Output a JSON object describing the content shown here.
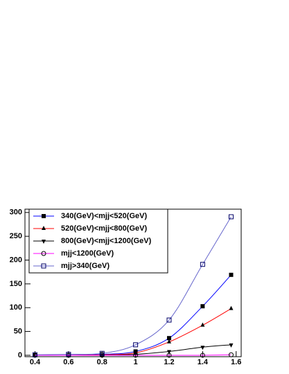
{
  "chart_data": {
    "type": "line",
    "x": [
      0.4,
      0.6,
      0.8,
      1.0,
      1.2,
      1.4,
      1.57
    ],
    "series": [
      {
        "name": "340(GeV)<mjj<520(GeV)",
        "color": "#0000ff",
        "marker_color": "#000000",
        "marker": "square",
        "values": [
          0,
          0,
          2,
          8,
          36,
          103,
          169
        ]
      },
      {
        "name": "520(GeV)<mjj<800(GeV)",
        "color": "#ff0000",
        "marker_color": "#000000",
        "marker": "triangle",
        "values": [
          0,
          0,
          1,
          5,
          28,
          63,
          98
        ]
      },
      {
        "name": "800(GeV)<mjj<1200(GeV)",
        "color": "#000000",
        "marker_color": "#000000",
        "marker": "triangle-down",
        "values": [
          0,
          0,
          0,
          2,
          8,
          17,
          22
        ]
      },
      {
        "name": "mjj<1200(GeV)",
        "color": "#ff00ff",
        "marker_color": "#000000",
        "marker": "circle-open",
        "values": [
          0,
          0,
          0,
          0,
          0,
          0,
          1
        ]
      },
      {
        "name": "mjj>340(GeV)",
        "color": "#6666cc",
        "marker_color": "#000066",
        "marker": "square-open",
        "values": [
          1,
          2,
          4,
          22,
          74,
          191,
          291
        ]
      }
    ],
    "xlim": [
      0.34,
      1.63
    ],
    "xticks": [
      0.4,
      0.6,
      0.8,
      1,
      1.2,
      1.4,
      1.6
    ],
    "ylim": [
      -3,
      307
    ],
    "yticks": [
      0,
      50,
      100,
      150,
      200,
      250,
      300
    ],
    "grid": false,
    "legend": "top-left"
  }
}
